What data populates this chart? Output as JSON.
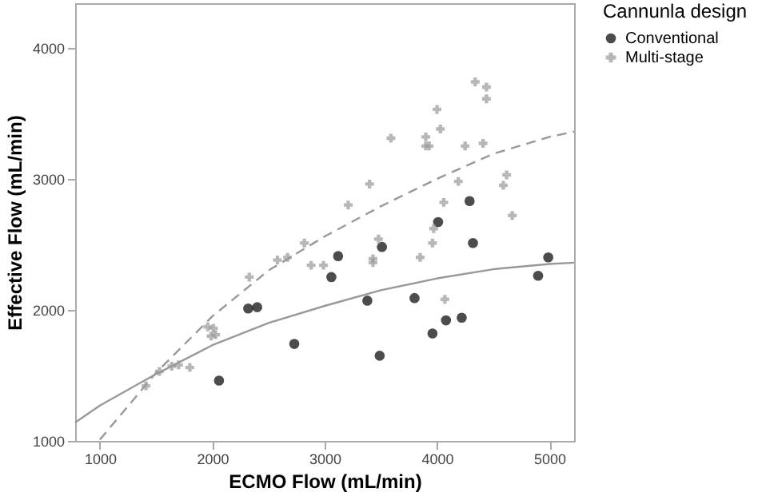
{
  "chart_data": {
    "type": "scatter",
    "xlabel": "ECMO Flow (mL/min)",
    "ylabel": "Effective Flow (mL/min)",
    "legend_title": "Cannunla design",
    "legend": "top right",
    "grid": false,
    "xlim": [
      780,
      5220
    ],
    "ylim": [
      1000,
      4340
    ],
    "xticks": [
      1000,
      2000,
      3000,
      4000,
      5000
    ],
    "yticks": [
      1000,
      2000,
      3000,
      4000
    ],
    "series": [
      {
        "name": "Conventional",
        "marker": "circle",
        "color": "#000000",
        "x": [
          2320,
          2400,
          2060,
          2730,
          3060,
          3120,
          3380,
          3510,
          3490,
          4320,
          4990,
          4900,
          3800,
          4080,
          4220,
          3960,
          4290,
          4010
        ],
        "values": [
          2010,
          2020,
          1460,
          1740,
          2250,
          2410,
          2070,
          2480,
          1650,
          2510,
          2400,
          2260,
          2090,
          1920,
          1940,
          1820,
          2830,
          2670
        ]
      },
      {
        "name": "Multi-stage",
        "marker": "cross",
        "color": "#999999",
        "x": [
          1410,
          1530,
          1640,
          1700,
          1800,
          1960,
          1990,
          2010,
          2030,
          2330,
          2580,
          2670,
          2820,
          2880,
          2990,
          3430,
          3430,
          3480,
          3210,
          3400,
          3590,
          3900,
          3900,
          3930,
          4000,
          4030,
          4250,
          4410,
          4340,
          4440,
          4440,
          4190,
          4620,
          4590,
          4060,
          4670,
          3970,
          3960,
          3850,
          4070
        ],
        "values": [
          1420,
          1530,
          1570,
          1580,
          1560,
          1870,
          1800,
          1860,
          1810,
          2250,
          2380,
          2400,
          2510,
          2340,
          2340,
          2390,
          2360,
          2540,
          2800,
          2960,
          3310,
          3320,
          3250,
          3250,
          3530,
          3380,
          3250,
          3270,
          3740,
          3700,
          3610,
          2980,
          3030,
          2950,
          2820,
          2720,
          2620,
          2510,
          2400,
          2080
        ]
      },
      {
        "type": "line",
        "line_style": "solid",
        "marker": "none",
        "color": "#999999",
        "x": [
          780,
          1000,
          1500,
          2000,
          2500,
          3000,
          3500,
          4000,
          4500,
          5000,
          5220
        ],
        "values": [
          1140,
          1270,
          1510,
          1730,
          1900,
          2030,
          2150,
          2240,
          2310,
          2350,
          2360
        ]
      },
      {
        "type": "line",
        "line_style": "dashed",
        "marker": "none",
        "color": "#999999",
        "x": [
          1000,
          1500,
          2000,
          2500,
          3000,
          3500,
          4000,
          4500,
          5000,
          5220
        ],
        "values": [
          1010,
          1520,
          1950,
          2300,
          2560,
          2790,
          3000,
          3190,
          3320,
          3360
        ]
      }
    ]
  }
}
